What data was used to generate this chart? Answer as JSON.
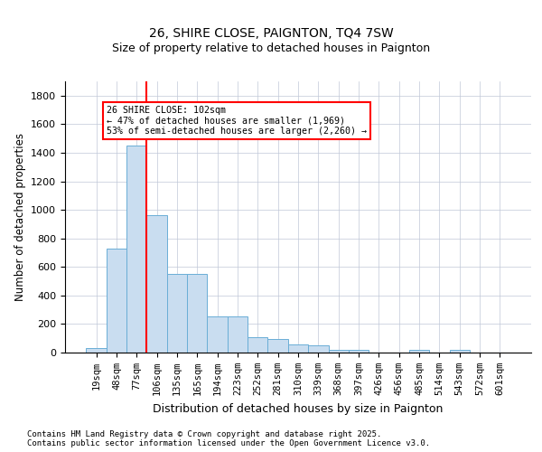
{
  "title": "26, SHIRE CLOSE, PAIGNTON, TQ4 7SW",
  "subtitle": "Size of property relative to detached houses in Paignton",
  "xlabel": "Distribution of detached houses by size in Paignton",
  "ylabel": "Number of detached properties",
  "footnote": "Contains HM Land Registry data © Crown copyright and database right 2025.\nContains public sector information licensed under the Open Government Licence v3.0.",
  "categories": [
    "19sqm",
    "48sqm",
    "77sqm",
    "106sqm",
    "135sqm",
    "165sqm",
    "194sqm",
    "223sqm",
    "252sqm",
    "281sqm",
    "310sqm",
    "339sqm",
    "368sqm",
    "397sqm",
    "426sqm",
    "456sqm",
    "485sqm",
    "514sqm",
    "543sqm",
    "572sqm",
    "601sqm"
  ],
  "values": [
    30,
    730,
    1450,
    960,
    550,
    550,
    255,
    255,
    110,
    95,
    60,
    50,
    20,
    20,
    0,
    0,
    20,
    0,
    20,
    0,
    0
  ],
  "bar_color": "#c9ddf0",
  "bar_edge_color": "#6aaed6",
  "vline_pos": 2.5,
  "vline_color": "red",
  "annotation_text": "26 SHIRE CLOSE: 102sqm\n← 47% of detached houses are smaller (1,969)\n53% of semi-detached houses are larger (2,260) →",
  "annotation_box_color": "red",
  "ylim": [
    0,
    1900
  ],
  "yticks": [
    0,
    200,
    400,
    600,
    800,
    1000,
    1200,
    1400,
    1600,
    1800
  ],
  "background_color": "#ffffff",
  "grid_color": "#c0c8d8"
}
